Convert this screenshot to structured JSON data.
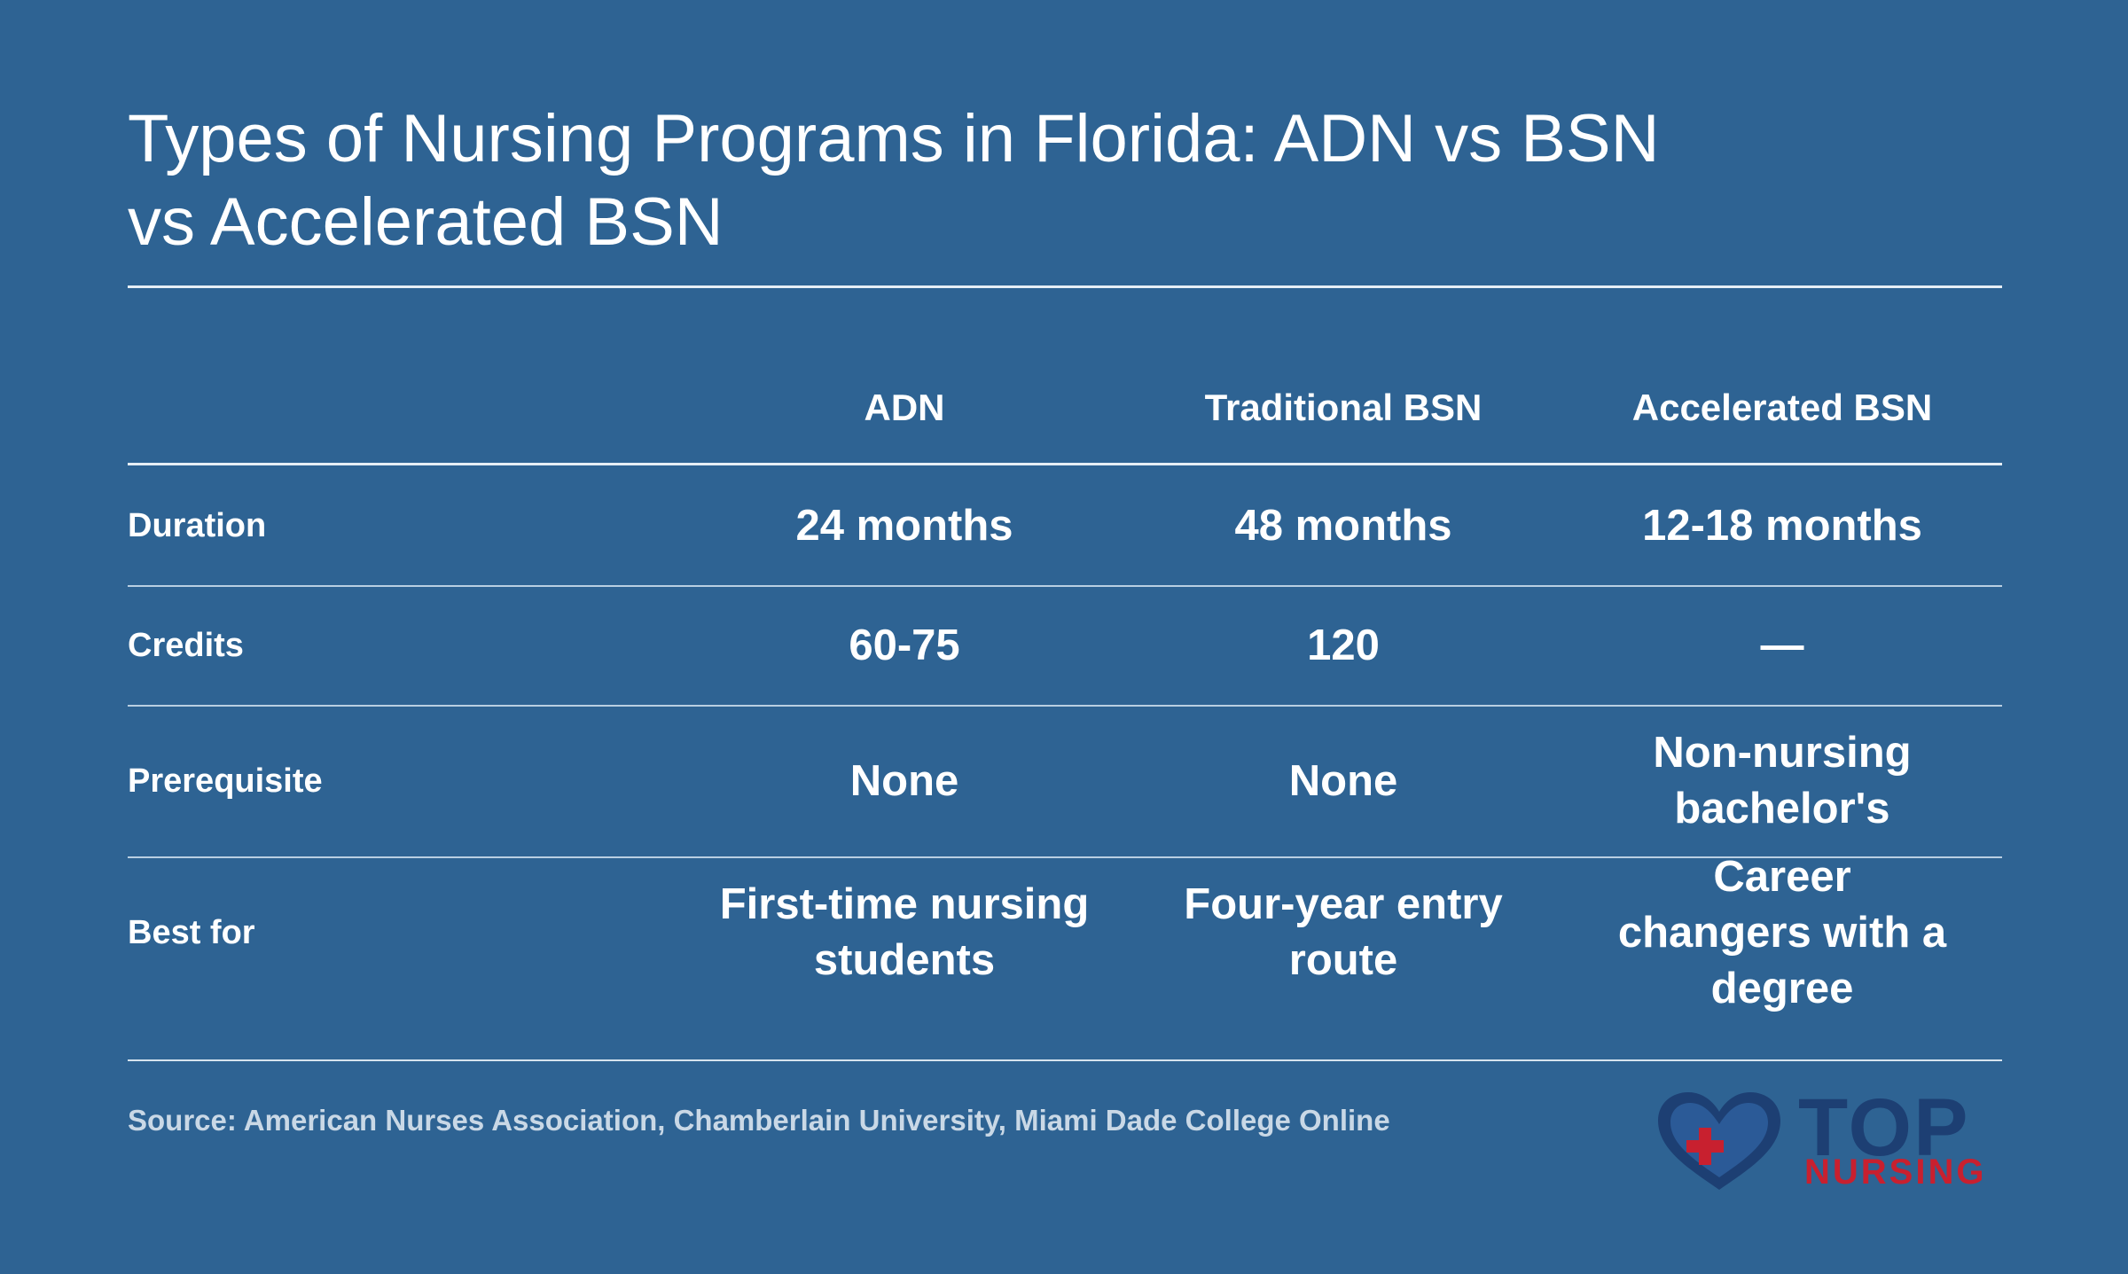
{
  "title": "Types of Nursing Programs in Florida: ADN vs BSN vs Accelerated BSN",
  "table": {
    "columns": [
      "ADN",
      "Traditional BSN",
      "Accelerated BSN"
    ],
    "rows": [
      {
        "label": "Duration",
        "values": [
          "24 months",
          "48 months",
          "12-18 months"
        ]
      },
      {
        "label": "Credits",
        "values": [
          "60-75",
          "120",
          "—"
        ]
      },
      {
        "label": "Prerequisite",
        "values": [
          "None",
          "None",
          "Non-nursing bachelor's"
        ]
      },
      {
        "label": "Best for",
        "values": [
          "First-time nursing students",
          "Four-year entry route",
          "Career changers with a degree"
        ]
      }
    ]
  },
  "source": "Source: American Nurses Association, Chamberlain University, Miami Dade College Online",
  "logo": {
    "word_top": "TOP",
    "word_nursing": "NURSING",
    "heart_icon": "heart-with-cross-icon"
  },
  "colors": {
    "background": "#2e6393",
    "logo_navy": "#1d3f73",
    "logo_red": "#c8202f"
  }
}
